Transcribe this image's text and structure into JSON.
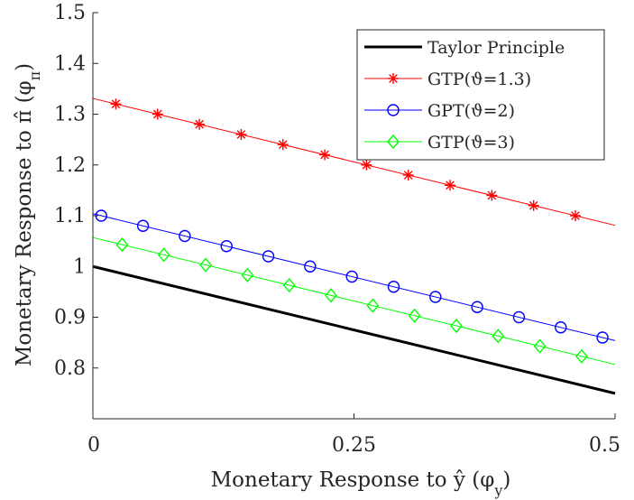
{
  "chart_data": {
    "type": "line",
    "title": "",
    "xlabel": "Monetary Response to ŷ (φ_y)",
    "ylabel": "Monetary Response to π̂ (φ_π)",
    "xlabel_parts": {
      "prefix": "Monetary Response to ",
      "symbol": "ŷ",
      "paren_open": " (φ",
      "sub": "y",
      "paren_close": ")"
    },
    "ylabel_parts": {
      "prefix": "Monetary Response to ",
      "symbol": "π̂",
      "paren_open": " (φ",
      "sub": "π",
      "paren_close": ")"
    },
    "xlim": [
      0,
      0.5
    ],
    "ylim": [
      0.7,
      1.5
    ],
    "xticks": [
      0,
      0.25,
      0.5
    ],
    "xtick_labels": [
      "0",
      "0.25",
      "0.5"
    ],
    "yticks": [
      0.8,
      0.9,
      1.0,
      1.1,
      1.2,
      1.3,
      1.4,
      1.5
    ],
    "ytick_labels": [
      "0.8",
      "0.9",
      "1",
      "1.1",
      "1.2",
      "1.3",
      "1.4",
      "1.5"
    ],
    "grid": false,
    "legend_position": "top-right",
    "series": [
      {
        "name": "Taylor Principle",
        "color": "#000000",
        "marker": "none",
        "line_width": 3,
        "x": [
          0,
          0.5
        ],
        "y": [
          1.0,
          0.75
        ],
        "marker_x": []
      },
      {
        "name": "GTP(ϑ=1.3)",
        "color": "#ff0000",
        "marker": "asterisk",
        "line_width": 1,
        "x": [
          0,
          0.5
        ],
        "y": [
          1.331,
          1.081
        ],
        "marker_x": [
          0.022,
          0.062,
          0.102,
          0.142,
          0.182,
          0.222,
          0.262,
          0.302,
          0.342,
          0.382,
          0.422,
          0.462
        ]
      },
      {
        "name": "GPT(ϑ=2)",
        "color": "#0000ff",
        "marker": "circle",
        "line_width": 1,
        "x": [
          0,
          0.5
        ],
        "y": [
          1.104,
          0.854
        ],
        "marker_x": [
          0.008,
          0.048,
          0.088,
          0.128,
          0.168,
          0.208,
          0.248,
          0.288,
          0.328,
          0.368,
          0.408,
          0.448,
          0.488
        ]
      },
      {
        "name": "GTP(ϑ=3)",
        "color": "#00ff00",
        "marker": "diamond",
        "line_width": 1,
        "x": [
          0,
          0.5
        ],
        "y": [
          1.057,
          0.807
        ],
        "marker_x": [
          0.028,
          0.068,
          0.108,
          0.148,
          0.188,
          0.228,
          0.268,
          0.308,
          0.348,
          0.388,
          0.428,
          0.468
        ]
      }
    ]
  }
}
